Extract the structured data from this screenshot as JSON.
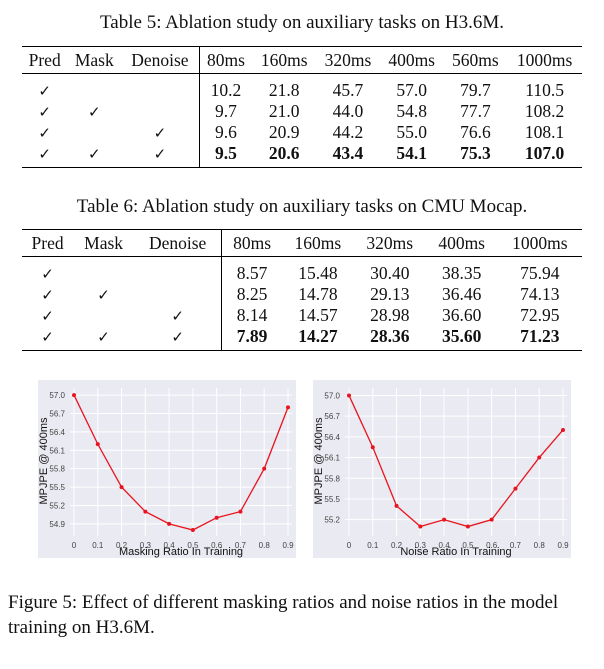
{
  "table5": {
    "caption_label": "Table 5:",
    "caption_text": "Ablation study on auxiliary tasks on H3.6M.",
    "headers": [
      "Pred",
      "Mask",
      "Denoise",
      "80ms",
      "160ms",
      "320ms",
      "400ms",
      "560ms",
      "1000ms"
    ],
    "rows": [
      {
        "pred": "✓",
        "mask": "",
        "denoise": "",
        "values": [
          "10.2",
          "21.8",
          "45.7",
          "57.0",
          "79.7",
          "110.5"
        ]
      },
      {
        "pred": "✓",
        "mask": "✓",
        "denoise": "",
        "values": [
          "9.7",
          "21.0",
          "44.0",
          "54.8",
          "77.7",
          "108.2"
        ]
      },
      {
        "pred": "✓",
        "mask": "",
        "denoise": "✓",
        "values": [
          "9.6",
          "20.9",
          "44.2",
          "55.0",
          "76.6",
          "108.1"
        ]
      },
      {
        "pred": "✓",
        "mask": "✓",
        "denoise": "✓",
        "values": [
          "9.5",
          "20.6",
          "43.4",
          "54.1",
          "75.3",
          "107.0"
        ],
        "bold": true
      }
    ]
  },
  "table6": {
    "caption_label": "Table 6:",
    "caption_text": "Ablation study on auxiliary tasks on CMU Mocap.",
    "headers": [
      "Pred",
      "Mask",
      "Denoise",
      "80ms",
      "160ms",
      "320ms",
      "400ms",
      "1000ms"
    ],
    "rows": [
      {
        "pred": "✓",
        "mask": "",
        "denoise": "",
        "values": [
          "8.57",
          "15.48",
          "30.40",
          "38.35",
          "75.94"
        ]
      },
      {
        "pred": "✓",
        "mask": "✓",
        "denoise": "",
        "values": [
          "8.25",
          "14.78",
          "29.13",
          "36.46",
          "74.13"
        ]
      },
      {
        "pred": "✓",
        "mask": "",
        "denoise": "✓",
        "values": [
          "8.14",
          "14.57",
          "28.98",
          "36.60",
          "72.95"
        ]
      },
      {
        "pred": "✓",
        "mask": "✓",
        "denoise": "✓",
        "values": [
          "7.89",
          "14.27",
          "28.36",
          "35.60",
          "71.23"
        ],
        "bold": true
      }
    ]
  },
  "chart_data": [
    {
      "type": "line",
      "xlabel": "Masking Ratio In Training",
      "ylabel": "MPJPE @ 400ms",
      "x": [
        0,
        0.1,
        0.2,
        0.3,
        0.4,
        0.5,
        0.6,
        0.7,
        0.8,
        0.9
      ],
      "xticks": [
        "0",
        "0.1",
        "0.2",
        "0.3",
        "0.4",
        "0.5",
        "0.6",
        "0.7",
        "0.8",
        "0.9"
      ],
      "values": [
        57.0,
        56.2,
        55.5,
        55.1,
        54.9,
        54.8,
        55.0,
        55.1,
        55.8,
        56.8
      ],
      "yticks": [
        "54.9",
        "55.2",
        "55.5",
        "55.8",
        "56.1",
        "56.4",
        "56.7",
        "57.0"
      ],
      "ylim": [
        54.8,
        57.05
      ],
      "line_color": "#e8141e",
      "background": "#eaeaf2",
      "grid": true
    },
    {
      "type": "line",
      "xlabel": "Noise Ratio In Training",
      "ylabel": "MPJPE @ 400ms",
      "x": [
        0,
        0.1,
        0.2,
        0.3,
        0.4,
        0.5,
        0.6,
        0.7,
        0.8,
        0.9
      ],
      "xticks": [
        "0",
        "0.1",
        "0.2",
        "0.3",
        "0.4",
        "0.5",
        "0.6",
        "0.7",
        "0.8",
        "0.9"
      ],
      "values": [
        57.0,
        56.25,
        55.4,
        55.1,
        55.2,
        55.1,
        55.2,
        55.65,
        56.1,
        56.5
      ],
      "yticks": [
        "55.2",
        "55.5",
        "55.8",
        "56.1",
        "56.4",
        "56.7",
        "57.0"
      ],
      "ylim": [
        55.05,
        57.05
      ],
      "line_color": "#e8141e",
      "background": "#eaeaf2",
      "grid": true
    }
  ],
  "figure5": {
    "caption_label": "Figure 5:",
    "caption_text": "Effect of different masking ratios and noise ratios in the model training on H3.6M."
  }
}
